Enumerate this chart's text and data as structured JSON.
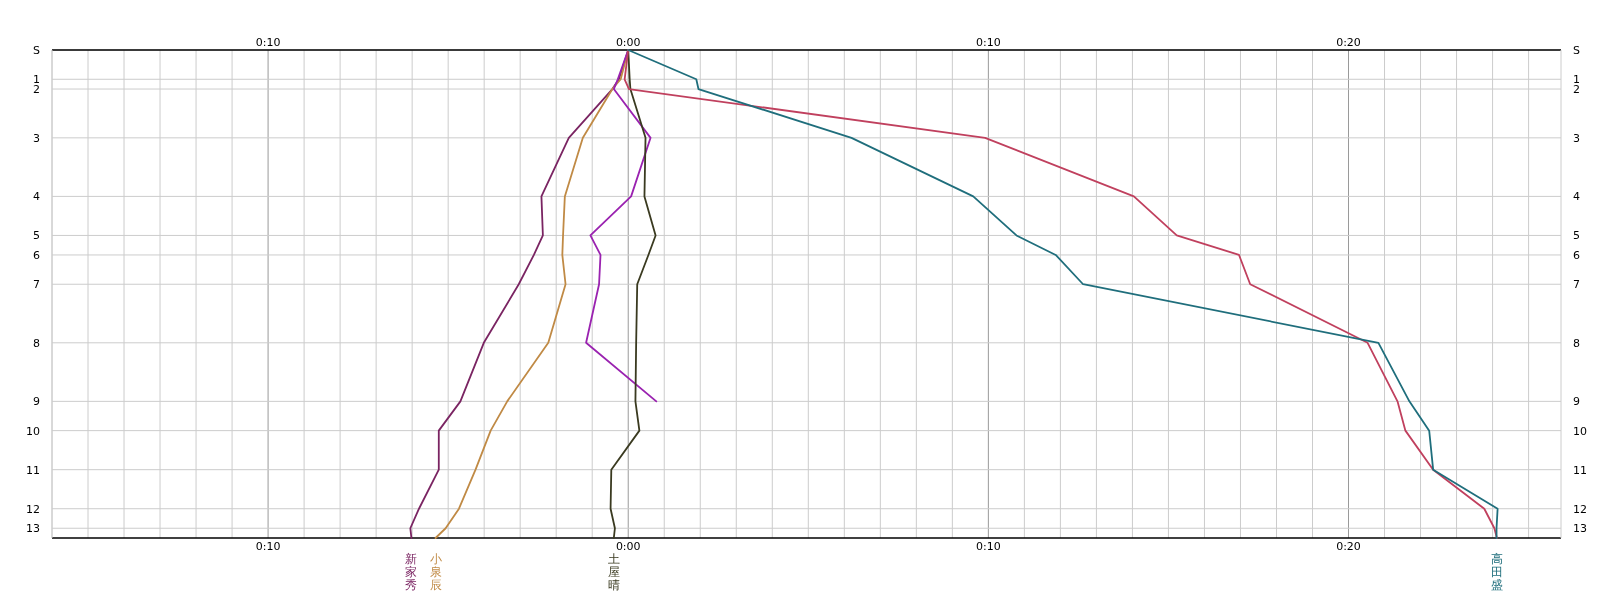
{
  "chart_data": {
    "type": "line",
    "orientation": "horizontal",
    "categories": [
      "S",
      null,
      null,
      "1",
      "2",
      null,
      null,
      null,
      null,
      "3",
      null,
      null,
      null,
      null,
      null,
      "4",
      null,
      null,
      null,
      "5",
      null,
      "6",
      null,
      null,
      "7",
      null,
      null,
      null,
      null,
      null,
      "8",
      null,
      null,
      null,
      null,
      null,
      "9",
      null,
      null,
      "10",
      null,
      null,
      null,
      "11",
      null,
      null,
      null,
      "12",
      null,
      "13",
      null
    ],
    "xlim": [
      -16,
      25.9
    ],
    "xticks": [
      {
        "value": -16,
        "label": null
      },
      {
        "value": -15,
        "label": null
      },
      {
        "value": -14,
        "label": null
      },
      {
        "value": -13,
        "label": null
      },
      {
        "value": -12,
        "label": null
      },
      {
        "value": -11,
        "label": null
      },
      {
        "value": -10,
        "label": "0:10"
      },
      {
        "value": -9,
        "label": null
      },
      {
        "value": -8,
        "label": null
      },
      {
        "value": -7,
        "label": null
      },
      {
        "value": -6,
        "label": null
      },
      {
        "value": -5,
        "label": null
      },
      {
        "value": -4,
        "label": null
      },
      {
        "value": -3,
        "label": null
      },
      {
        "value": -2,
        "label": null
      },
      {
        "value": -1,
        "label": null
      },
      {
        "value": 0,
        "label": "0:00"
      },
      {
        "value": 1,
        "label": null
      },
      {
        "value": 2,
        "label": null
      },
      {
        "value": 3,
        "label": null
      },
      {
        "value": 4,
        "label": null
      },
      {
        "value": 5,
        "label": null
      },
      {
        "value": 6,
        "label": null
      },
      {
        "value": 7,
        "label": null
      },
      {
        "value": 8,
        "label": null
      },
      {
        "value": 9,
        "label": null
      },
      {
        "value": 10,
        "label": "0:10"
      },
      {
        "value": 11,
        "label": null
      },
      {
        "value": 12,
        "label": null
      },
      {
        "value": 13,
        "label": null
      },
      {
        "value": 14,
        "label": null
      },
      {
        "value": 15,
        "label": null
      },
      {
        "value": 16,
        "label": null
      },
      {
        "value": 17,
        "label": null
      },
      {
        "value": 18,
        "label": null
      },
      {
        "value": 19,
        "label": null
      },
      {
        "value": 20,
        "label": "0:20"
      },
      {
        "value": 21,
        "label": null
      },
      {
        "value": 22,
        "label": null
      },
      {
        "value": 23,
        "label": null
      },
      {
        "value": 24,
        "label": null
      },
      {
        "value": 25,
        "label": null
      }
    ],
    "x2lim": [
      -16,
      25.9
    ],
    "x2ticks": [
      {
        "value": -10,
        "label": "0:10"
      },
      {
        "value": 0,
        "label": "0:00"
      },
      {
        "value": 10,
        "label": "0:10"
      },
      {
        "value": 20,
        "label": "0:20"
      }
    ],
    "grid": true,
    "series": [
      {
        "name": "新家秀",
        "color": "#7a2462",
        "values": [
          0,
          null,
          null,
          -0.26,
          -0.44,
          null,
          null,
          null,
          null,
          -1.65,
          null,
          null,
          null,
          null,
          null,
          -2.41,
          null,
          null,
          null,
          -2.37,
          null,
          -2.62,
          null,
          null,
          -3.04,
          null,
          null,
          null,
          null,
          null,
          -4.01,
          null,
          null,
          null,
          null,
          null,
          -4.66,
          null,
          null,
          -5.26,
          null,
          null,
          null,
          -5.26,
          null,
          null,
          null,
          -5.81,
          null,
          -6.05,
          -6.02
        ]
      },
      {
        "name": "小泉辰",
        "color": "#c08a45",
        "values": [
          0,
          null,
          null,
          -0.21,
          -0.44,
          null,
          null,
          null,
          null,
          -1.26,
          null,
          null,
          null,
          null,
          null,
          -1.76,
          null,
          null,
          null,
          -1.81,
          null,
          -1.83,
          null,
          null,
          -1.74,
          null,
          null,
          null,
          null,
          null,
          -2.22,
          null,
          null,
          null,
          null,
          null,
          -3.36,
          null,
          null,
          -3.82,
          null,
          null,
          null,
          -4.24,
          null,
          null,
          null,
          -4.7,
          null,
          -5.07,
          -5.35
        ]
      },
      {
        "color": "#9a22b0",
        "values": [
          0,
          null,
          null,
          -0.29,
          -0.4,
          null,
          null,
          null,
          null,
          0.62,
          null,
          null,
          null,
          null,
          null,
          0.08,
          null,
          null,
          null,
          -1.05,
          null,
          -0.77,
          null,
          null,
          -0.81,
          null,
          null,
          null,
          null,
          null,
          -1.17,
          null,
          null,
          null,
          null,
          null,
          0.78,
          null,
          null,
          null,
          null,
          null,
          null,
          null,
          null,
          null,
          null,
          null,
          null,
          null,
          null
        ]
      },
      {
        "name": "土屋晴",
        "color": "#3a3a20",
        "values": [
          0,
          null,
          null,
          0.04,
          0.06,
          null,
          null,
          null,
          null,
          0.48,
          null,
          null,
          null,
          null,
          null,
          0.45,
          null,
          null,
          null,
          0.76,
          null,
          0.56,
          null,
          null,
          0.25,
          null,
          null,
          null,
          null,
          null,
          0.22,
          null,
          null,
          null,
          null,
          null,
          0.2,
          null,
          null,
          0.31,
          null,
          null,
          null,
          -0.47,
          null,
          null,
          null,
          -0.49,
          null,
          -0.37,
          -0.4
        ]
      },
      {
        "color": "#c0405e",
        "values": [
          0,
          null,
          null,
          -0.1,
          0.02,
          null,
          null,
          null,
          null,
          9.91,
          null,
          null,
          null,
          null,
          null,
          14.04,
          null,
          null,
          null,
          15.23,
          null,
          16.96,
          null,
          null,
          17.27,
          null,
          null,
          null,
          null,
          null,
          20.53,
          null,
          null,
          null,
          null,
          null,
          21.36,
          null,
          null,
          21.58,
          null,
          null,
          null,
          22.35,
          null,
          null,
          null,
          23.77,
          null,
          24.05,
          24.12
        ]
      },
      {
        "name": "高田盛",
        "color": "#1f6e7c",
        "values": [
          0,
          null,
          null,
          1.89,
          1.95,
          null,
          null,
          null,
          null,
          6.2,
          null,
          null,
          null,
          null,
          null,
          9.58,
          null,
          null,
          null,
          10.78,
          null,
          11.87,
          null,
          null,
          12.63,
          null,
          null,
          null,
          null,
          null,
          20.83,
          null,
          null,
          null,
          null,
          null,
          21.69,
          null,
          null,
          22.24,
          null,
          null,
          null,
          22.35,
          null,
          null,
          null,
          24.14,
          null,
          24.11,
          24.11
        ]
      }
    ]
  }
}
